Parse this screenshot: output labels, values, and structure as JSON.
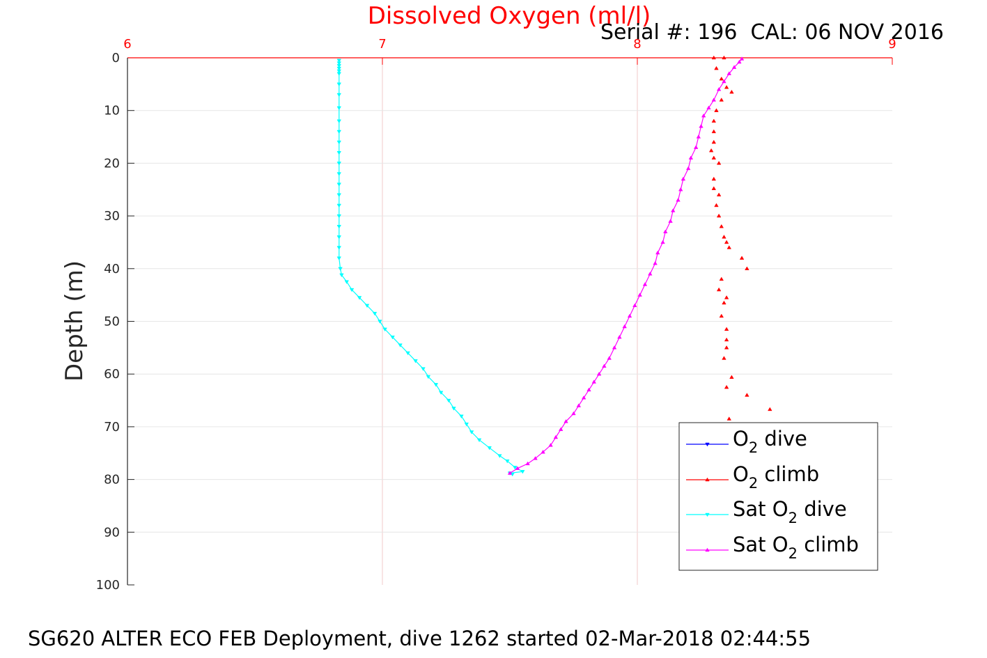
{
  "chart_data": {
    "type": "line",
    "title": "Dissolved Oxygen (ml/l)",
    "subtitle": "Serial #: 196  CAL: 06 NOV 2016",
    "footer": "SG620 ALTER ECO FEB Deployment, dive 1262 started 02-Mar-2018 02:44:55",
    "xlabel": "",
    "ylabel": "Depth (m)",
    "xlim": [
      6,
      9
    ],
    "ylim": [
      0,
      100
    ],
    "y_reversed": true,
    "x_axis_position": "top",
    "x_ticks": [
      "6",
      "7",
      "8",
      "9"
    ],
    "y_ticks": [
      "0",
      "10",
      "20",
      "30",
      "40",
      "50",
      "60",
      "70",
      "80",
      "90",
      "100"
    ],
    "grid": true,
    "legend_position": "bottom-right",
    "legend": [
      {
        "base": "O",
        "sub": "2",
        "rest": " dive",
        "color": "#0000ff",
        "marker": "down-triangle"
      },
      {
        "base": "O",
        "sub": "2",
        "rest": " climb",
        "color": "#ff0000",
        "marker": "up-triangle"
      },
      {
        "base": "Sat O",
        "sub": "2",
        "rest": " dive",
        "color": "#00ffff",
        "marker": "down-triangle"
      },
      {
        "base": "Sat O",
        "sub": "2",
        "rest": " climb",
        "color": "#ff00ff",
        "marker": "up-triangle"
      }
    ],
    "series": [
      {
        "name": "O2 dive",
        "color": "#0000ff",
        "marker": "down-triangle",
        "points": []
      },
      {
        "name": "O2 climb",
        "color": "#ff0000",
        "marker": "up-triangle",
        "style": "markers",
        "points": [
          [
            8.3,
            0
          ],
          [
            8.34,
            0
          ],
          [
            8.31,
            2
          ],
          [
            8.33,
            4
          ],
          [
            8.35,
            5.6
          ],
          [
            8.37,
            6.5
          ],
          [
            8.33,
            8
          ],
          [
            8.31,
            10
          ],
          [
            8.3,
            12
          ],
          [
            8.3,
            14
          ],
          [
            8.3,
            16
          ],
          [
            8.29,
            17.6
          ],
          [
            8.3,
            19
          ],
          [
            8.32,
            20
          ],
          [
            8.3,
            23
          ],
          [
            8.3,
            24.8
          ],
          [
            8.32,
            26
          ],
          [
            8.31,
            28
          ],
          [
            8.32,
            30
          ],
          [
            8.33,
            32
          ],
          [
            8.34,
            34
          ],
          [
            8.35,
            35
          ],
          [
            8.36,
            36
          ],
          [
            8.41,
            38
          ],
          [
            8.43,
            40
          ],
          [
            8.33,
            42
          ],
          [
            8.32,
            44
          ],
          [
            8.35,
            45.5
          ],
          [
            8.34,
            46.5
          ],
          [
            8.33,
            49
          ],
          [
            8.35,
            51.5
          ],
          [
            8.35,
            53.5
          ],
          [
            8.35,
            55
          ],
          [
            8.34,
            57
          ],
          [
            8.37,
            60.6
          ],
          [
            8.35,
            62.5
          ],
          [
            8.43,
            64
          ],
          [
            8.52,
            66.7
          ],
          [
            8.36,
            68.5
          ]
        ]
      },
      {
        "name": "Sat O2 dive",
        "color": "#00ffff",
        "marker": "down-triangle",
        "points": [
          [
            6.83,
            0.5
          ],
          [
            6.83,
            1
          ],
          [
            6.83,
            1.5
          ],
          [
            6.83,
            2
          ],
          [
            6.83,
            2.5
          ],
          [
            6.83,
            3
          ],
          [
            6.83,
            5
          ],
          [
            6.83,
            7
          ],
          [
            6.83,
            9.5
          ],
          [
            6.83,
            12
          ],
          [
            6.83,
            14
          ],
          [
            6.83,
            16
          ],
          [
            6.83,
            18
          ],
          [
            6.83,
            20
          ],
          [
            6.83,
            22
          ],
          [
            6.83,
            24
          ],
          [
            6.83,
            26
          ],
          [
            6.83,
            28
          ],
          [
            6.83,
            30
          ],
          [
            6.83,
            32
          ],
          [
            6.83,
            34
          ],
          [
            6.83,
            36
          ],
          [
            6.83,
            38
          ],
          [
            6.835,
            40
          ],
          [
            6.84,
            41.2
          ],
          [
            6.86,
            42.5
          ],
          [
            6.88,
            44
          ],
          [
            6.91,
            45.5
          ],
          [
            6.94,
            47
          ],
          [
            6.97,
            48.5
          ],
          [
            6.99,
            50
          ],
          [
            7.01,
            51.5
          ],
          [
            7.04,
            53
          ],
          [
            7.07,
            54.5
          ],
          [
            7.1,
            56
          ],
          [
            7.13,
            57.5
          ],
          [
            7.16,
            59
          ],
          [
            7.18,
            60.5
          ],
          [
            7.21,
            62
          ],
          [
            7.23,
            63.5
          ],
          [
            7.26,
            65
          ],
          [
            7.28,
            66.5
          ],
          [
            7.31,
            68
          ],
          [
            7.33,
            69.5
          ],
          [
            7.35,
            71
          ],
          [
            7.38,
            72.5
          ],
          [
            7.42,
            74
          ],
          [
            7.46,
            75.5
          ],
          [
            7.49,
            76.5
          ],
          [
            7.52,
            77.7
          ],
          [
            7.55,
            78.5
          ],
          [
            7.5,
            78.8
          ],
          [
            7.51,
            79
          ]
        ]
      },
      {
        "name": "Sat O2 climb",
        "color": "#ff00ff",
        "marker": "up-triangle",
        "points": [
          [
            7.5,
            78.8
          ],
          [
            7.53,
            77.9
          ],
          [
            7.57,
            77
          ],
          [
            7.6,
            76
          ],
          [
            7.63,
            74.8
          ],
          [
            7.66,
            73.5
          ],
          [
            7.68,
            72
          ],
          [
            7.7,
            70.5
          ],
          [
            7.72,
            69
          ],
          [
            7.75,
            67.5
          ],
          [
            7.77,
            66
          ],
          [
            7.79,
            64.5
          ],
          [
            7.81,
            63
          ],
          [
            7.83,
            61.5
          ],
          [
            7.85,
            60
          ],
          [
            7.87,
            58.5
          ],
          [
            7.89,
            57
          ],
          [
            7.91,
            55
          ],
          [
            7.93,
            53
          ],
          [
            7.95,
            51
          ],
          [
            7.97,
            49
          ],
          [
            7.99,
            47
          ],
          [
            8.01,
            45
          ],
          [
            8.03,
            43
          ],
          [
            8.05,
            41
          ],
          [
            8.07,
            39
          ],
          [
            8.08,
            37
          ],
          [
            8.1,
            35
          ],
          [
            8.11,
            33
          ],
          [
            8.13,
            31
          ],
          [
            8.14,
            29
          ],
          [
            8.16,
            27
          ],
          [
            8.17,
            25
          ],
          [
            8.18,
            23
          ],
          [
            8.2,
            21
          ],
          [
            8.21,
            19
          ],
          [
            8.23,
            17
          ],
          [
            8.24,
            15
          ],
          [
            8.25,
            13
          ],
          [
            8.26,
            11
          ],
          [
            8.28,
            9.5
          ],
          [
            8.3,
            8
          ],
          [
            8.32,
            6
          ],
          [
            8.34,
            4.5
          ],
          [
            8.36,
            3
          ],
          [
            8.38,
            1.8
          ],
          [
            8.4,
            0.8
          ],
          [
            8.41,
            0.2
          ]
        ]
      }
    ]
  }
}
